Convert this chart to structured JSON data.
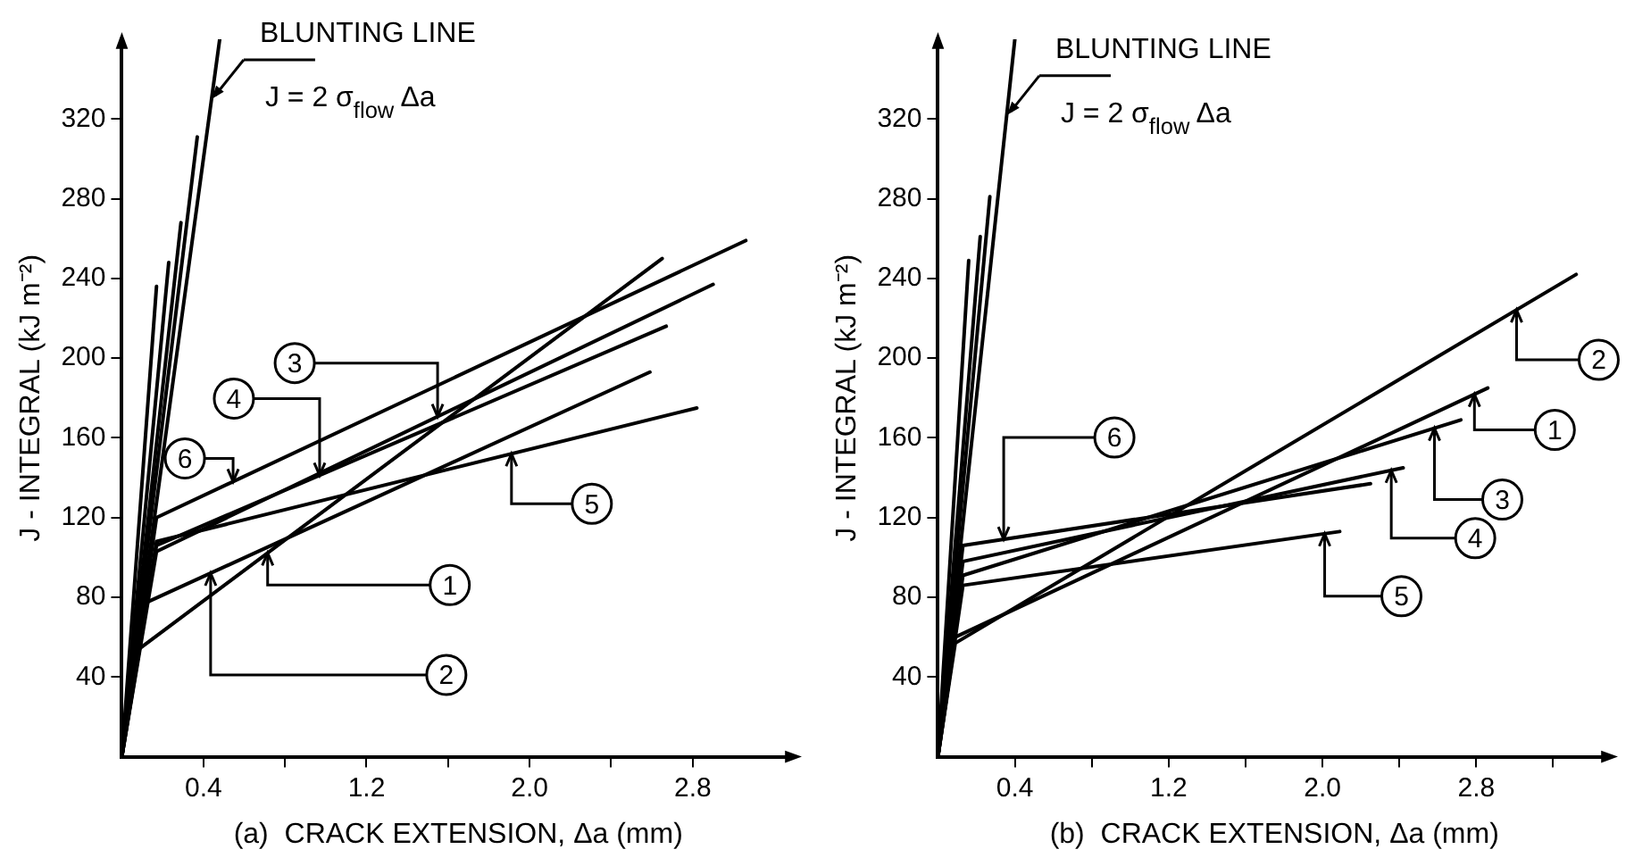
{
  "chart_data": [
    {
      "type": "line",
      "xlabel": "(a)  CRACK EXTENSION, Δa (mm)",
      "ylabel": "J - INTEGRAL (kJ m⁻²)",
      "xlim": [
        0,
        3.3
      ],
      "ylim": [
        0,
        360
      ],
      "xticks": [
        0.4,
        {
          "value": 0.8,
          "label": null
        },
        1.2,
        {
          "value": 1.6,
          "label": null
        },
        {
          "value": 2,
          "label": "2.0"
        },
        {
          "value": 2.4,
          "label": null
        },
        2.8
      ],
      "yticks": [
        40,
        80,
        120,
        160,
        200,
        240,
        280,
        320
      ],
      "grid": false,
      "marker": "none",
      "line_style": "solid",
      "series": [
        {
          "name": "1",
          "color": "#000000",
          "x": [
            0,
            0.07,
            2.65
          ],
          "values": [
            0,
            53,
            250
          ]
        },
        {
          "name": "2",
          "color": "#000000",
          "x": [
            0,
            0.07,
            2.59
          ],
          "values": [
            0,
            75,
            193
          ]
        },
        {
          "name": "3",
          "color": "#000000",
          "x": [
            0,
            0.17,
            2.9
          ],
          "values": [
            0,
            103,
            237
          ]
        },
        {
          "name": "4",
          "color": "#000000",
          "x": [
            0,
            0.17,
            2.67
          ],
          "values": [
            0,
            106,
            216
          ]
        },
        {
          "name": "5",
          "color": "#000000",
          "x": [
            0,
            0.17,
            2.82
          ],
          "values": [
            0,
            108,
            175
          ]
        },
        {
          "name": "6",
          "color": "#000000",
          "x": [
            0,
            0.17,
            3.06
          ],
          "values": [
            0,
            120,
            259
          ]
        },
        {
          "color": "#000000",
          "x": [
            0,
            0.17
          ],
          "values": [
            0,
            236
          ]
        },
        {
          "color": "#000000",
          "x": [
            0,
            0.23
          ],
          "values": [
            0,
            248
          ]
        },
        {
          "color": "#000000",
          "x": [
            0,
            0.29
          ],
          "values": [
            0,
            268
          ]
        },
        {
          "color": "#000000",
          "x": [
            0,
            0.37
          ],
          "values": [
            0,
            311
          ]
        },
        {
          "color": "#000000",
          "x": [
            0,
            0.48
          ],
          "values": [
            0,
            360
          ]
        }
      ],
      "annotations": [
        {
          "text": "BLUNTING LINE\nJ = 2 σ$_{flow}$ Δa",
          "x": 0.44,
          "y": 330
        }
      ]
    },
    {
      "type": "line",
      "xlabel": "(b)  CRACK EXTENSION, Δa (mm)",
      "ylabel": "J - INTEGRAL (kJ m⁻²)",
      "xlim": [
        0,
        3.5
      ],
      "ylim": [
        0,
        360
      ],
      "xticks": [
        0.4,
        {
          "value": 0.8,
          "label": null
        },
        1.2,
        {
          "value": 1.6,
          "label": null
        },
        {
          "value": 2,
          "label": "2.0"
        },
        {
          "value": 2.4,
          "label": null
        },
        2.8,
        {
          "value": 3.2,
          "label": null
        }
      ],
      "yticks": [
        40,
        80,
        120,
        160,
        200,
        240,
        280,
        320
      ],
      "grid": false,
      "marker": "none",
      "line_style": "solid",
      "series": [
        {
          "name": "1",
          "color": "#000000",
          "x": [
            0,
            0.09,
            2.86
          ],
          "values": [
            0,
            60,
            185
          ]
        },
        {
          "name": "2",
          "color": "#000000",
          "x": [
            0,
            0.09,
            3.32
          ],
          "values": [
            0,
            57,
            242
          ]
        },
        {
          "name": "3",
          "color": "#000000",
          "x": [
            0,
            0.13,
            2.72
          ],
          "values": [
            0,
            91,
            169
          ]
        },
        {
          "name": "4",
          "color": "#000000",
          "x": [
            0,
            0.13,
            2.42
          ],
          "values": [
            0,
            98,
            145
          ]
        },
        {
          "name": "5",
          "color": "#000000",
          "x": [
            0,
            0.13,
            2.09
          ],
          "values": [
            0,
            86,
            113
          ]
        },
        {
          "name": "6",
          "color": "#000000",
          "x": [
            0,
            0.13,
            2.25
          ],
          "values": [
            0,
            106,
            137
          ]
        },
        {
          "color": "#000000",
          "x": [
            0,
            0.16
          ],
          "values": [
            0,
            249
          ]
        },
        {
          "color": "#000000",
          "x": [
            0,
            0.22
          ],
          "values": [
            0,
            261
          ]
        },
        {
          "color": "#000000",
          "x": [
            0,
            0.27
          ],
          "values": [
            0,
            281
          ]
        },
        {
          "color": "#000000",
          "x": [
            0,
            0.4
          ],
          "values": [
            0,
            360
          ]
        }
      ],
      "annotations": [
        {
          "text": "BLUNTING LINE\nJ = 2 σ$_{flow}$ Δa",
          "x": 0.36,
          "y": 322
        }
      ]
    }
  ]
}
